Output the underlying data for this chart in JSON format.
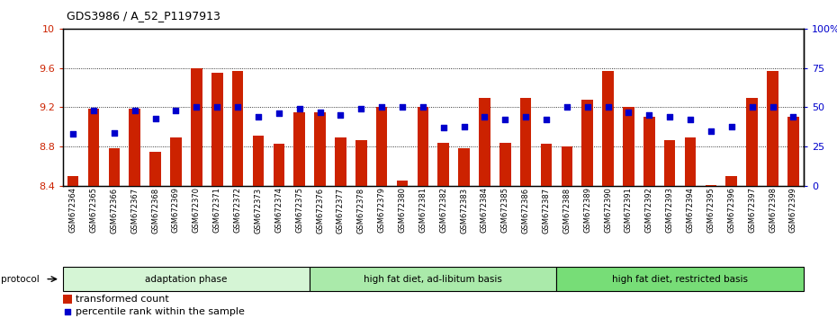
{
  "title": "GDS3986 / A_52_P1197913",
  "samples": [
    "GSM672364",
    "GSM672365",
    "GSM672366",
    "GSM672367",
    "GSM672368",
    "GSM672369",
    "GSM672370",
    "GSM672371",
    "GSM672372",
    "GSM672373",
    "GSM672374",
    "GSM672375",
    "GSM672376",
    "GSM672377",
    "GSM672378",
    "GSM672379",
    "GSM672380",
    "GSM672381",
    "GSM672382",
    "GSM672383",
    "GSM672384",
    "GSM672385",
    "GSM672386",
    "GSM672387",
    "GSM672388",
    "GSM672389",
    "GSM672390",
    "GSM672391",
    "GSM672392",
    "GSM672393",
    "GSM672394",
    "GSM672395",
    "GSM672396",
    "GSM672397",
    "GSM672398",
    "GSM672399"
  ],
  "bar_values": [
    8.5,
    9.19,
    8.78,
    9.19,
    8.75,
    8.89,
    9.6,
    9.55,
    9.57,
    8.91,
    8.83,
    9.15,
    9.15,
    8.89,
    8.87,
    9.2,
    8.46,
    9.2,
    8.84,
    8.78,
    9.3,
    8.84,
    9.3,
    8.83,
    8.8,
    9.28,
    9.57,
    9.2,
    9.1,
    8.87,
    8.89,
    8.41,
    8.5,
    9.3,
    9.57,
    9.1
  ],
  "percentile_values": [
    33,
    48,
    34,
    48,
    43,
    48,
    50,
    50,
    50,
    44,
    46,
    49,
    47,
    45,
    49,
    50,
    50,
    50,
    37,
    38,
    44,
    42,
    44,
    42,
    50,
    50,
    50,
    47,
    45,
    44,
    42,
    35,
    38,
    50,
    50,
    44
  ],
  "ylim_left": [
    8.4,
    10.0
  ],
  "ylim_right": [
    0,
    100
  ],
  "yticks_left": [
    8.4,
    8.8,
    9.2,
    9.6,
    10.0
  ],
  "yticks_right": [
    0,
    25,
    50,
    75,
    100
  ],
  "ytick_labels_left": [
    "8.4",
    "8.8",
    "9.2",
    "9.6",
    "10"
  ],
  "ytick_labels_right": [
    "0",
    "25",
    "50",
    "75",
    "100%"
  ],
  "groups": [
    {
      "label": "adaptation phase",
      "start": 0,
      "end": 12,
      "color": "#d5f5d5"
    },
    {
      "label": "high fat diet, ad-libitum basis",
      "start": 12,
      "end": 24,
      "color": "#aaeaaa"
    },
    {
      "label": "high fat diet, restricted basis",
      "start": 24,
      "end": 36,
      "color": "#77dd77"
    }
  ],
  "bar_color": "#cc2200",
  "dot_color": "#0000cc",
  "bar_width": 0.55,
  "protocol_label": "protocol",
  "legend_bar_label": "transformed count",
  "legend_dot_label": "percentile rank within the sample",
  "bg_color": "#ffffff",
  "left_tick_color": "#cc2200",
  "right_tick_color": "#0000cc"
}
